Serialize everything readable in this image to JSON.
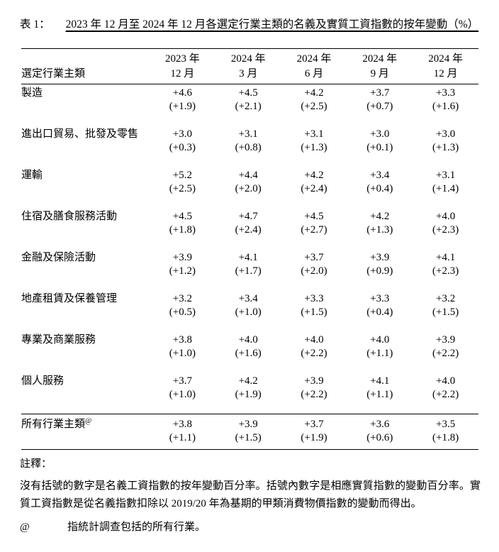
{
  "title": {
    "label": "表 1：",
    "text": "2023 年 12 月至 2024 年 12 月各選定行業主類的名義及實質工資指數的按年變動（%）"
  },
  "table": {
    "row_header": "選定行業主類",
    "columns": [
      {
        "year": "2023 年",
        "month": "12 月"
      },
      {
        "year": "2024 年",
        "month": "3 月"
      },
      {
        "year": "2024 年",
        "month": "6 月"
      },
      {
        "year": "2024 年",
        "month": "9 月"
      },
      {
        "year": "2024 年",
        "month": "12 月"
      }
    ],
    "rows": [
      {
        "label": "製造",
        "nominal": [
          "+4.6",
          "+4.5",
          "+4.2",
          "+3.7",
          "+3.3"
        ],
        "real": [
          "(+1.9)",
          "(+2.1)",
          "(+2.5)",
          "(+0.7)",
          "(+1.6)"
        ]
      },
      {
        "label": "進出口貿易、批發及零售",
        "nominal": [
          "+3.0",
          "+3.1",
          "+3.1",
          "+3.0",
          "+3.0"
        ],
        "real": [
          "(+0.3)",
          "(+0.8)",
          "(+1.3)",
          "(+0.1)",
          "(+1.3)"
        ]
      },
      {
        "label": "運輸",
        "nominal": [
          "+5.2",
          "+4.4",
          "+4.2",
          "+3.4",
          "+3.1"
        ],
        "real": [
          "(+2.5)",
          "(+2.0)",
          "(+2.4)",
          "(+0.4)",
          "(+1.4)"
        ]
      },
      {
        "label": "住宿及膳食服務活動",
        "nominal": [
          "+4.5",
          "+4.7",
          "+4.5",
          "+4.2",
          "+4.0"
        ],
        "real": [
          "(+1.8)",
          "(+2.4)",
          "(+2.7)",
          "(+1.3)",
          "(+2.3)"
        ]
      },
      {
        "label": "金融及保險活動",
        "nominal": [
          "+3.9",
          "+4.1",
          "+3.7",
          "+3.9",
          "+4.1"
        ],
        "real": [
          "(+1.2)",
          "(+1.7)",
          "(+2.0)",
          "(+0.9)",
          "(+2.3)"
        ]
      },
      {
        "label": "地產租賃及保養管理",
        "nominal": [
          "+3.2",
          "+3.4",
          "+3.3",
          "+3.3",
          "+3.2"
        ],
        "real": [
          "(+0.5)",
          "(+1.0)",
          "(+1.5)",
          "(+0.4)",
          "(+1.5)"
        ]
      },
      {
        "label": "專業及商業服務",
        "nominal": [
          "+3.8",
          "+4.0",
          "+4.0",
          "+4.0",
          "+3.9"
        ],
        "real": [
          "(+1.0)",
          "(+1.6)",
          "(+2.2)",
          "(+1.1)",
          "(+2.2)"
        ]
      },
      {
        "label": "個人服務",
        "nominal": [
          "+3.7",
          "+4.2",
          "+3.9",
          "+4.1",
          "+4.0"
        ],
        "real": [
          "(+1.0)",
          "(+1.9)",
          "(+2.2)",
          "(+1.1)",
          "(+2.2)"
        ]
      },
      {
        "label": "所有行業主類",
        "label_sup": "@",
        "total": true,
        "nominal": [
          "+3.8",
          "+3.9",
          "+3.7",
          "+3.6",
          "+3.5"
        ],
        "real": [
          "(+1.1)",
          "(+1.5)",
          "(+1.9)",
          "(+0.6)",
          "(+1.8)"
        ]
      }
    ]
  },
  "notes": {
    "heading": "註釋：",
    "body": "沒有括號的數字是名義工資指數的按年變動百分率。括號內數字是相應實質指數的變動百分率。實質工資指數是從名義指數扣除以 2019/20 年為基期的甲類消費物價指數的變動而得出。",
    "at_symbol": "@",
    "at_text": "指統計調查包括的所有行業。"
  }
}
